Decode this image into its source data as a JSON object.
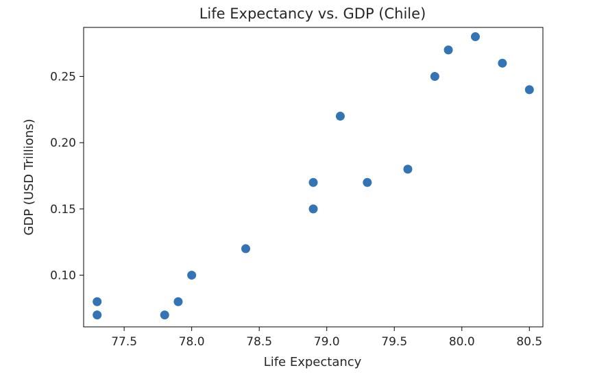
{
  "chart_data": {
    "type": "scatter",
    "title": "Life Expectancy vs. GDP (Chile)",
    "xlabel": "Life Expectancy",
    "ylabel": "GDP (USD Trillions)",
    "xlim": [
      77.2,
      80.6
    ],
    "ylim": [
      0.061,
      0.287
    ],
    "grid": false,
    "marker_color": "#3274b4",
    "x_ticks": [
      {
        "value": 77.5,
        "label": "77.5"
      },
      {
        "value": 78.0,
        "label": "78.0"
      },
      {
        "value": 78.5,
        "label": "78.5"
      },
      {
        "value": 79.0,
        "label": "79.0"
      },
      {
        "value": 79.5,
        "label": "79.5"
      },
      {
        "value": 80.0,
        "label": "80.0"
      },
      {
        "value": 80.5,
        "label": "80.5"
      }
    ],
    "y_ticks": [
      {
        "value": 0.1,
        "label": "0.10"
      },
      {
        "value": 0.15,
        "label": "0.15"
      },
      {
        "value": 0.2,
        "label": "0.20"
      },
      {
        "value": 0.25,
        "label": "0.25"
      }
    ],
    "points": [
      {
        "x": 77.3,
        "y": 0.08
      },
      {
        "x": 77.3,
        "y": 0.07
      },
      {
        "x": 77.8,
        "y": 0.07
      },
      {
        "x": 77.9,
        "y": 0.08
      },
      {
        "x": 78.0,
        "y": 0.1
      },
      {
        "x": 78.4,
        "y": 0.12
      },
      {
        "x": 78.9,
        "y": 0.15
      },
      {
        "x": 78.9,
        "y": 0.17
      },
      {
        "x": 79.1,
        "y": 0.22
      },
      {
        "x": 79.3,
        "y": 0.17
      },
      {
        "x": 79.6,
        "y": 0.18
      },
      {
        "x": 79.8,
        "y": 0.25
      },
      {
        "x": 79.9,
        "y": 0.27
      },
      {
        "x": 80.1,
        "y": 0.28
      },
      {
        "x": 80.3,
        "y": 0.26
      },
      {
        "x": 80.5,
        "y": 0.24
      }
    ]
  }
}
